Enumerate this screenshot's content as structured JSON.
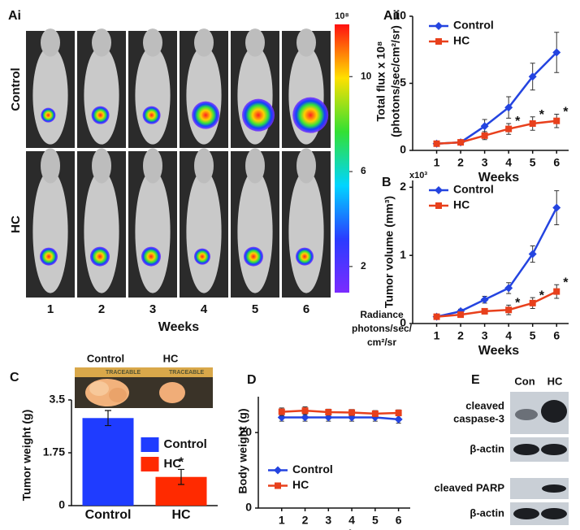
{
  "panels": {
    "ai": "Ai",
    "aii": "Aii",
    "b": "B",
    "c": "C",
    "d": "D",
    "e": "E"
  },
  "imaging": {
    "rows": [
      "Control",
      "HC"
    ],
    "weeks": [
      "1",
      "2",
      "3",
      "4",
      "5",
      "6"
    ],
    "x_label": "Weeks",
    "colorbar": {
      "exponent_label": "10⁸",
      "lim": [
        0.9,
        12.2
      ],
      "ticks": [
        10,
        6,
        2
      ],
      "label": [
        "Radiance",
        "photons/sec/",
        "cm²/sr"
      ]
    }
  },
  "photo": {
    "labels": [
      "Control",
      "HC"
    ],
    "ruler_text": "TRACEABLE"
  },
  "blot": {
    "lanes": [
      "Con",
      "HC"
    ],
    "rows": [
      [
        "cleaved",
        "caspase-3"
      ],
      [
        "β-actin"
      ],
      [
        "cleaved PARP"
      ],
      [
        "β-actin"
      ]
    ]
  },
  "chart_data": [
    {
      "type": "line",
      "x": [
        1,
        2,
        3,
        4,
        5,
        6
      ],
      "xlim": [
        0,
        6.5
      ],
      "xticks": [
        1,
        2,
        3,
        4,
        5,
        6
      ],
      "ylim": [
        0,
        10
      ],
      "yticks": [
        0,
        5,
        10
      ],
      "y_label": [
        "Total flux x 10⁸",
        "(photons/sec/cm²/sr)"
      ],
      "x_label": "Weeks",
      "legend": "upper-left",
      "series": [
        {
          "name": "Control",
          "color": "#2444e0",
          "marker": "diamond",
          "values": [
            0.5,
            0.6,
            1.8,
            3.2,
            5.5,
            7.3
          ],
          "errors": [
            0.1,
            0.1,
            0.5,
            0.8,
            1.0,
            1.5
          ]
        },
        {
          "name": "HC",
          "color": "#e8401c",
          "marker": "square",
          "values": [
            0.5,
            0.6,
            1.1,
            1.6,
            2.0,
            2.2
          ],
          "errors": [
            0.1,
            0.1,
            0.3,
            0.4,
            0.5,
            0.5
          ]
        }
      ],
      "annotations": [
        {
          "text": "*",
          "x": 4
        },
        {
          "text": "*",
          "x": 5
        },
        {
          "text": "*",
          "x": 6
        }
      ]
    },
    {
      "type": "line",
      "x": [
        1,
        2,
        3,
        4,
        5,
        6
      ],
      "xlim": [
        0,
        6.5
      ],
      "xticks": [
        1,
        2,
        3,
        4,
        5,
        6
      ],
      "ylim": [
        0,
        2.1
      ],
      "yticks": [
        0,
        1,
        2
      ],
      "y_label": [
        "Tumor volume (mm³)"
      ],
      "y_multiplier": "x10³",
      "x_label": "Weeks",
      "legend": "upper-left",
      "series": [
        {
          "name": "Control",
          "color": "#2444e0",
          "marker": "diamond",
          "values": [
            0.1,
            0.18,
            0.35,
            0.52,
            1.02,
            1.7
          ],
          "errors": [
            0.02,
            0.03,
            0.05,
            0.08,
            0.12,
            0.25
          ]
        },
        {
          "name": "HC",
          "color": "#e8401c",
          "marker": "square",
          "values": [
            0.1,
            0.13,
            0.18,
            0.2,
            0.3,
            0.47
          ],
          "errors": [
            0.02,
            0.02,
            0.04,
            0.07,
            0.08,
            0.1
          ]
        }
      ],
      "annotations": [
        {
          "text": "*",
          "x": 4
        },
        {
          "text": "*",
          "x": 5
        },
        {
          "text": "*",
          "x": 6
        }
      ]
    },
    {
      "type": "bar",
      "categories": [
        "Control",
        "HC"
      ],
      "values": [
        2.9,
        0.95
      ],
      "errors": [
        0.25,
        0.25
      ],
      "colors": [
        "#1f3cff",
        "#ff2a00"
      ],
      "ylim": [
        0,
        3.5
      ],
      "yticks": [
        0,
        1.75,
        3.5
      ],
      "y_label": [
        "Tumor weight (g)"
      ],
      "legend": "center-right",
      "annotations": [
        {
          "text": "*",
          "category": 1
        }
      ]
    },
    {
      "type": "line",
      "x": [
        1,
        2,
        3,
        4,
        5,
        6
      ],
      "xlim": [
        0,
        6.5
      ],
      "xticks": [
        1,
        2,
        3,
        4,
        5,
        6
      ],
      "ylim": [
        0,
        29.5
      ],
      "yticks": [
        0,
        20
      ],
      "y_label": [
        "Body weight (g)"
      ],
      "x_label": "Weeks",
      "legend": "center-left",
      "series": [
        {
          "name": "Control",
          "color": "#2444e0",
          "marker": "diamond",
          "values": [
            24,
            24,
            24,
            24,
            24,
            23.5
          ],
          "errors": [
            1,
            1,
            1,
            1,
            1,
            1
          ]
        },
        {
          "name": "HC",
          "color": "#e8401c",
          "marker": "square",
          "values": [
            25.5,
            25.8,
            25.4,
            25.3,
            25,
            25.2
          ],
          "errors": [
            1,
            1,
            0.8,
            0.8,
            0.8,
            0.8
          ]
        }
      ]
    }
  ]
}
